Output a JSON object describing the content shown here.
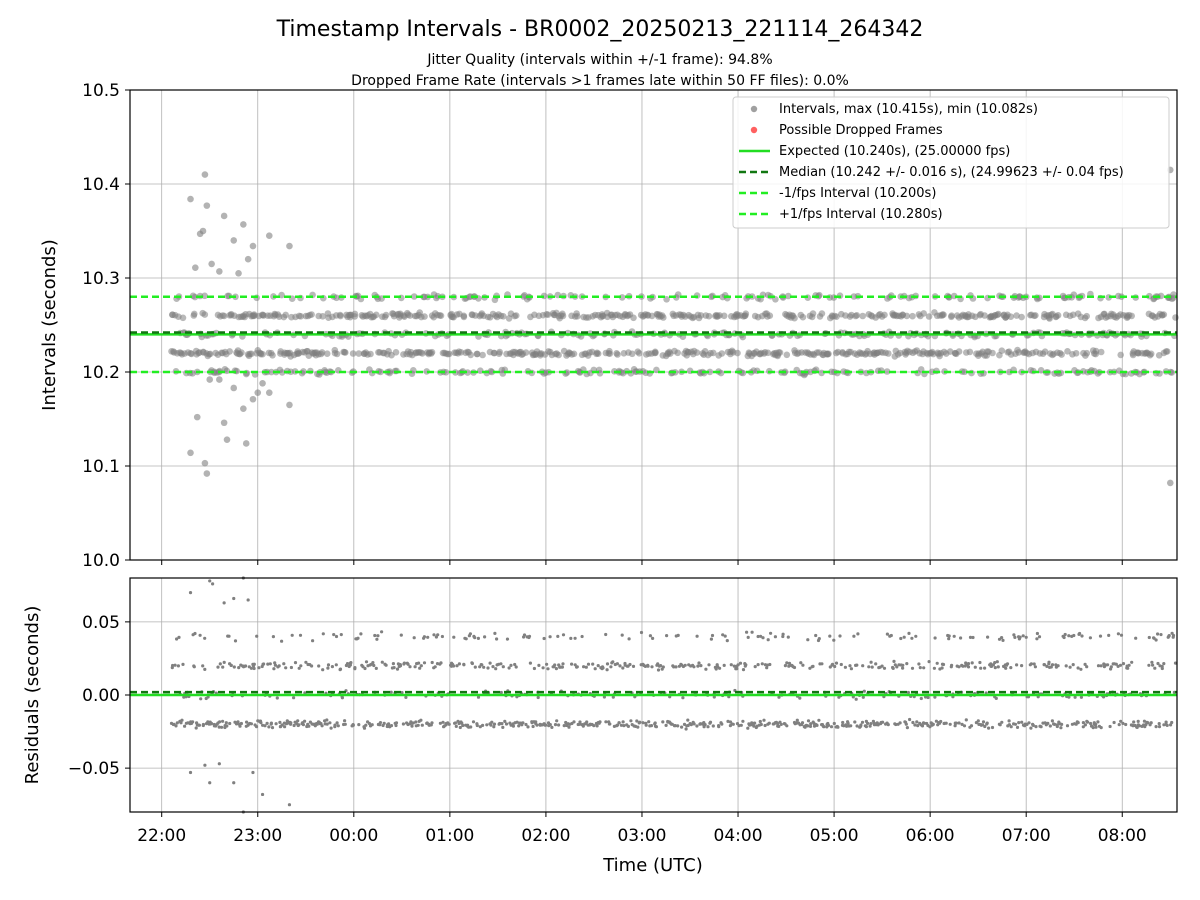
{
  "chart_data": {
    "type": "scatter",
    "title": "Timestamp Intervals - BR0002_20250213_221114_264342",
    "subtitle_lines": [
      "Jitter Quality (intervals within +/-1 frame): 94.8%",
      "Dropped Frame Rate (intervals >1 frames late within 50 FF files): 0.0%"
    ],
    "xlabel": "Time (UTC)",
    "x_ticks": [
      "22:00",
      "23:00",
      "00:00",
      "01:00",
      "02:00",
      "03:00",
      "04:00",
      "05:00",
      "06:00",
      "07:00",
      "08:00"
    ],
    "x_range_hours": [
      21.67,
      32.57
    ],
    "data_start_hours": 22.1,
    "data_end_hours": 32.55,
    "legend_position": "top-right",
    "grid": true,
    "colors": {
      "points": "#808080",
      "dropped": "#ff5a5a",
      "expected": "#22dd22",
      "median": "#117711",
      "interval_lines": "#22ee22"
    },
    "top_panel": {
      "ylabel": "Intervals (seconds)",
      "ylim": [
        10.0,
        10.5
      ],
      "y_ticks": [
        "10.0",
        "10.1",
        "10.2",
        "10.3",
        "10.4",
        "10.5"
      ],
      "expected": 10.24,
      "median": 10.242,
      "minus_interval": 10.2,
      "plus_interval": 10.28,
      "interval_levels": [
        10.2,
        10.22,
        10.24,
        10.26,
        10.28
      ],
      "early_outliers": [
        [
          22.3,
          10.384
        ],
        [
          22.45,
          10.41
        ],
        [
          22.47,
          10.377
        ],
        [
          22.4,
          10.347
        ],
        [
          22.43,
          10.35
        ],
        [
          22.65,
          10.366
        ],
        [
          22.75,
          10.34
        ],
        [
          22.85,
          10.357
        ],
        [
          22.95,
          10.334
        ],
        [
          23.12,
          10.345
        ],
        [
          23.33,
          10.334
        ],
        [
          22.52,
          10.315
        ],
        [
          22.35,
          10.311
        ],
        [
          22.6,
          10.307
        ],
        [
          22.8,
          10.305
        ],
        [
          22.9,
          10.32
        ],
        [
          22.3,
          10.114
        ],
        [
          22.45,
          10.103
        ],
        [
          22.47,
          10.092
        ],
        [
          22.5,
          10.192
        ],
        [
          22.65,
          10.146
        ],
        [
          22.75,
          10.183
        ],
        [
          22.85,
          10.161
        ],
        [
          22.95,
          10.171
        ],
        [
          23.0,
          10.178
        ],
        [
          23.12,
          10.178
        ],
        [
          23.33,
          10.165
        ],
        [
          22.37,
          10.152
        ],
        [
          22.88,
          10.124
        ],
        [
          22.68,
          10.128
        ],
        [
          22.6,
          10.192
        ],
        [
          23.05,
          10.188
        ],
        [
          22.78,
          10.201
        ]
      ],
      "late_outliers": [
        [
          32.5,
          10.415
        ],
        [
          32.5,
          10.082
        ]
      ]
    },
    "bottom_panel": {
      "ylabel": "Residuals (seconds)",
      "ylim": [
        -0.08,
        0.08
      ],
      "y_ticks": [
        "0.05",
        "0.00",
        "−0.05"
      ],
      "y_tick_values": [
        0.05,
        0.0,
        -0.05
      ],
      "median_residual": 0.002,
      "residual_levels": [
        -0.02,
        0.0,
        0.02,
        0.04
      ],
      "early_outliers": [
        [
          22.3,
          0.07
        ],
        [
          22.5,
          0.078
        ],
        [
          22.65,
          0.063
        ],
        [
          22.85,
          0.08
        ],
        [
          22.53,
          0.076
        ],
        [
          22.75,
          0.066
        ],
        [
          22.9,
          0.065
        ],
        [
          22.3,
          -0.053
        ],
        [
          22.45,
          -0.048
        ],
        [
          22.5,
          -0.06
        ],
        [
          22.75,
          -0.06
        ],
        [
          22.95,
          -0.053
        ],
        [
          23.05,
          -0.068
        ],
        [
          23.33,
          -0.075
        ],
        [
          22.85,
          -0.08
        ],
        [
          22.6,
          -0.047
        ]
      ]
    },
    "legend": [
      {
        "label": "Intervals, max (10.415s), min (10.082s)",
        "marker": "dot",
        "color": "#a0a0a0"
      },
      {
        "label": "Possible Dropped Frames",
        "marker": "dot",
        "color": "#ff6060"
      },
      {
        "label": "Expected (10.240s), (25.00000 fps)",
        "marker": "solid",
        "color": "#22dd22"
      },
      {
        "label": "Median (10.242 +/- 0.016 s), (24.99623 +/- 0.04 fps)",
        "marker": "dashed",
        "color": "#117711"
      },
      {
        "label": "-1/fps Interval (10.200s)",
        "marker": "dashed",
        "color": "#22ee22"
      },
      {
        "label": "+1/fps Interval (10.280s)",
        "marker": "dashed",
        "color": "#22ee22"
      }
    ]
  }
}
